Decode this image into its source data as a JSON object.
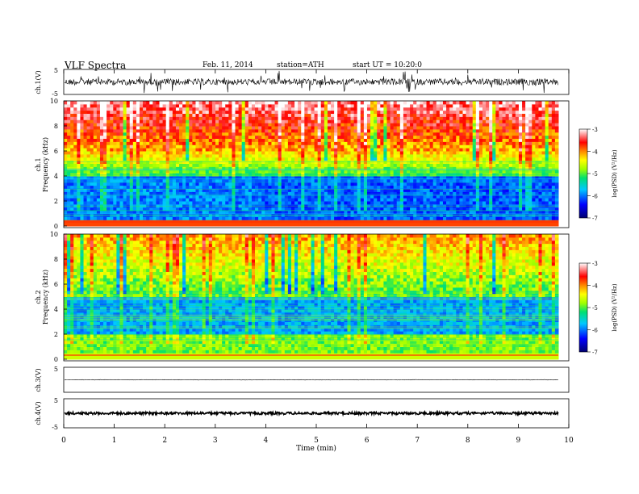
{
  "header": {
    "title": "VLF Spectra",
    "date": "Feb. 11, 2014",
    "station": "station=ATH",
    "start": "start UT =  10:20:0"
  },
  "colorbar": {
    "label": "log(PSD) (V²/Hz)",
    "ticks": [
      "-3",
      "-4",
      "-5",
      "-6",
      "-7"
    ]
  },
  "chart_data": [
    {
      "type": "line",
      "name": "ch1-waveform",
      "ylabel": "ch.1(V)",
      "ylim": [
        -5,
        5
      ],
      "yticks": [
        "5",
        "-5"
      ],
      "description_level": "noisy waveform near 0 V with spikes"
    },
    {
      "type": "heatmap",
      "name": "ch1-spectrogram",
      "ylabel_channel": "ch.1",
      "ylabel": "Frequency (kHz)",
      "ylim": [
        0,
        10
      ],
      "yticks": [
        "0",
        "2",
        "4",
        "6",
        "8",
        "10"
      ],
      "xlim": [
        0,
        9.8
      ],
      "zrange": [
        -7,
        -3
      ]
    },
    {
      "type": "heatmap",
      "name": "ch2-spectrogram",
      "ylabel_channel": "ch.2",
      "ylabel": "Frequency (kHz)",
      "ylim": [
        0,
        10
      ],
      "yticks": [
        "0",
        "2",
        "4",
        "6",
        "8",
        "10"
      ],
      "xlim": [
        0,
        9.8
      ],
      "zrange": [
        -7,
        -3
      ]
    },
    {
      "type": "line",
      "name": "ch3-waveform",
      "ylabel": "ch.3(V)",
      "ylim": [
        -5,
        5
      ],
      "yticks": [
        "5"
      ]
    },
    {
      "type": "line",
      "name": "ch4-waveform",
      "ylabel": "ch.4(V)",
      "ylim": [
        -5,
        5
      ],
      "yticks": [
        "5",
        "-5"
      ]
    }
  ],
  "xaxis": {
    "label": "Time (min)",
    "ticks": [
      "0",
      "1",
      "2",
      "3",
      "4",
      "5",
      "6",
      "7",
      "8",
      "9",
      "10"
    ],
    "xlim": [
      0,
      10
    ]
  }
}
